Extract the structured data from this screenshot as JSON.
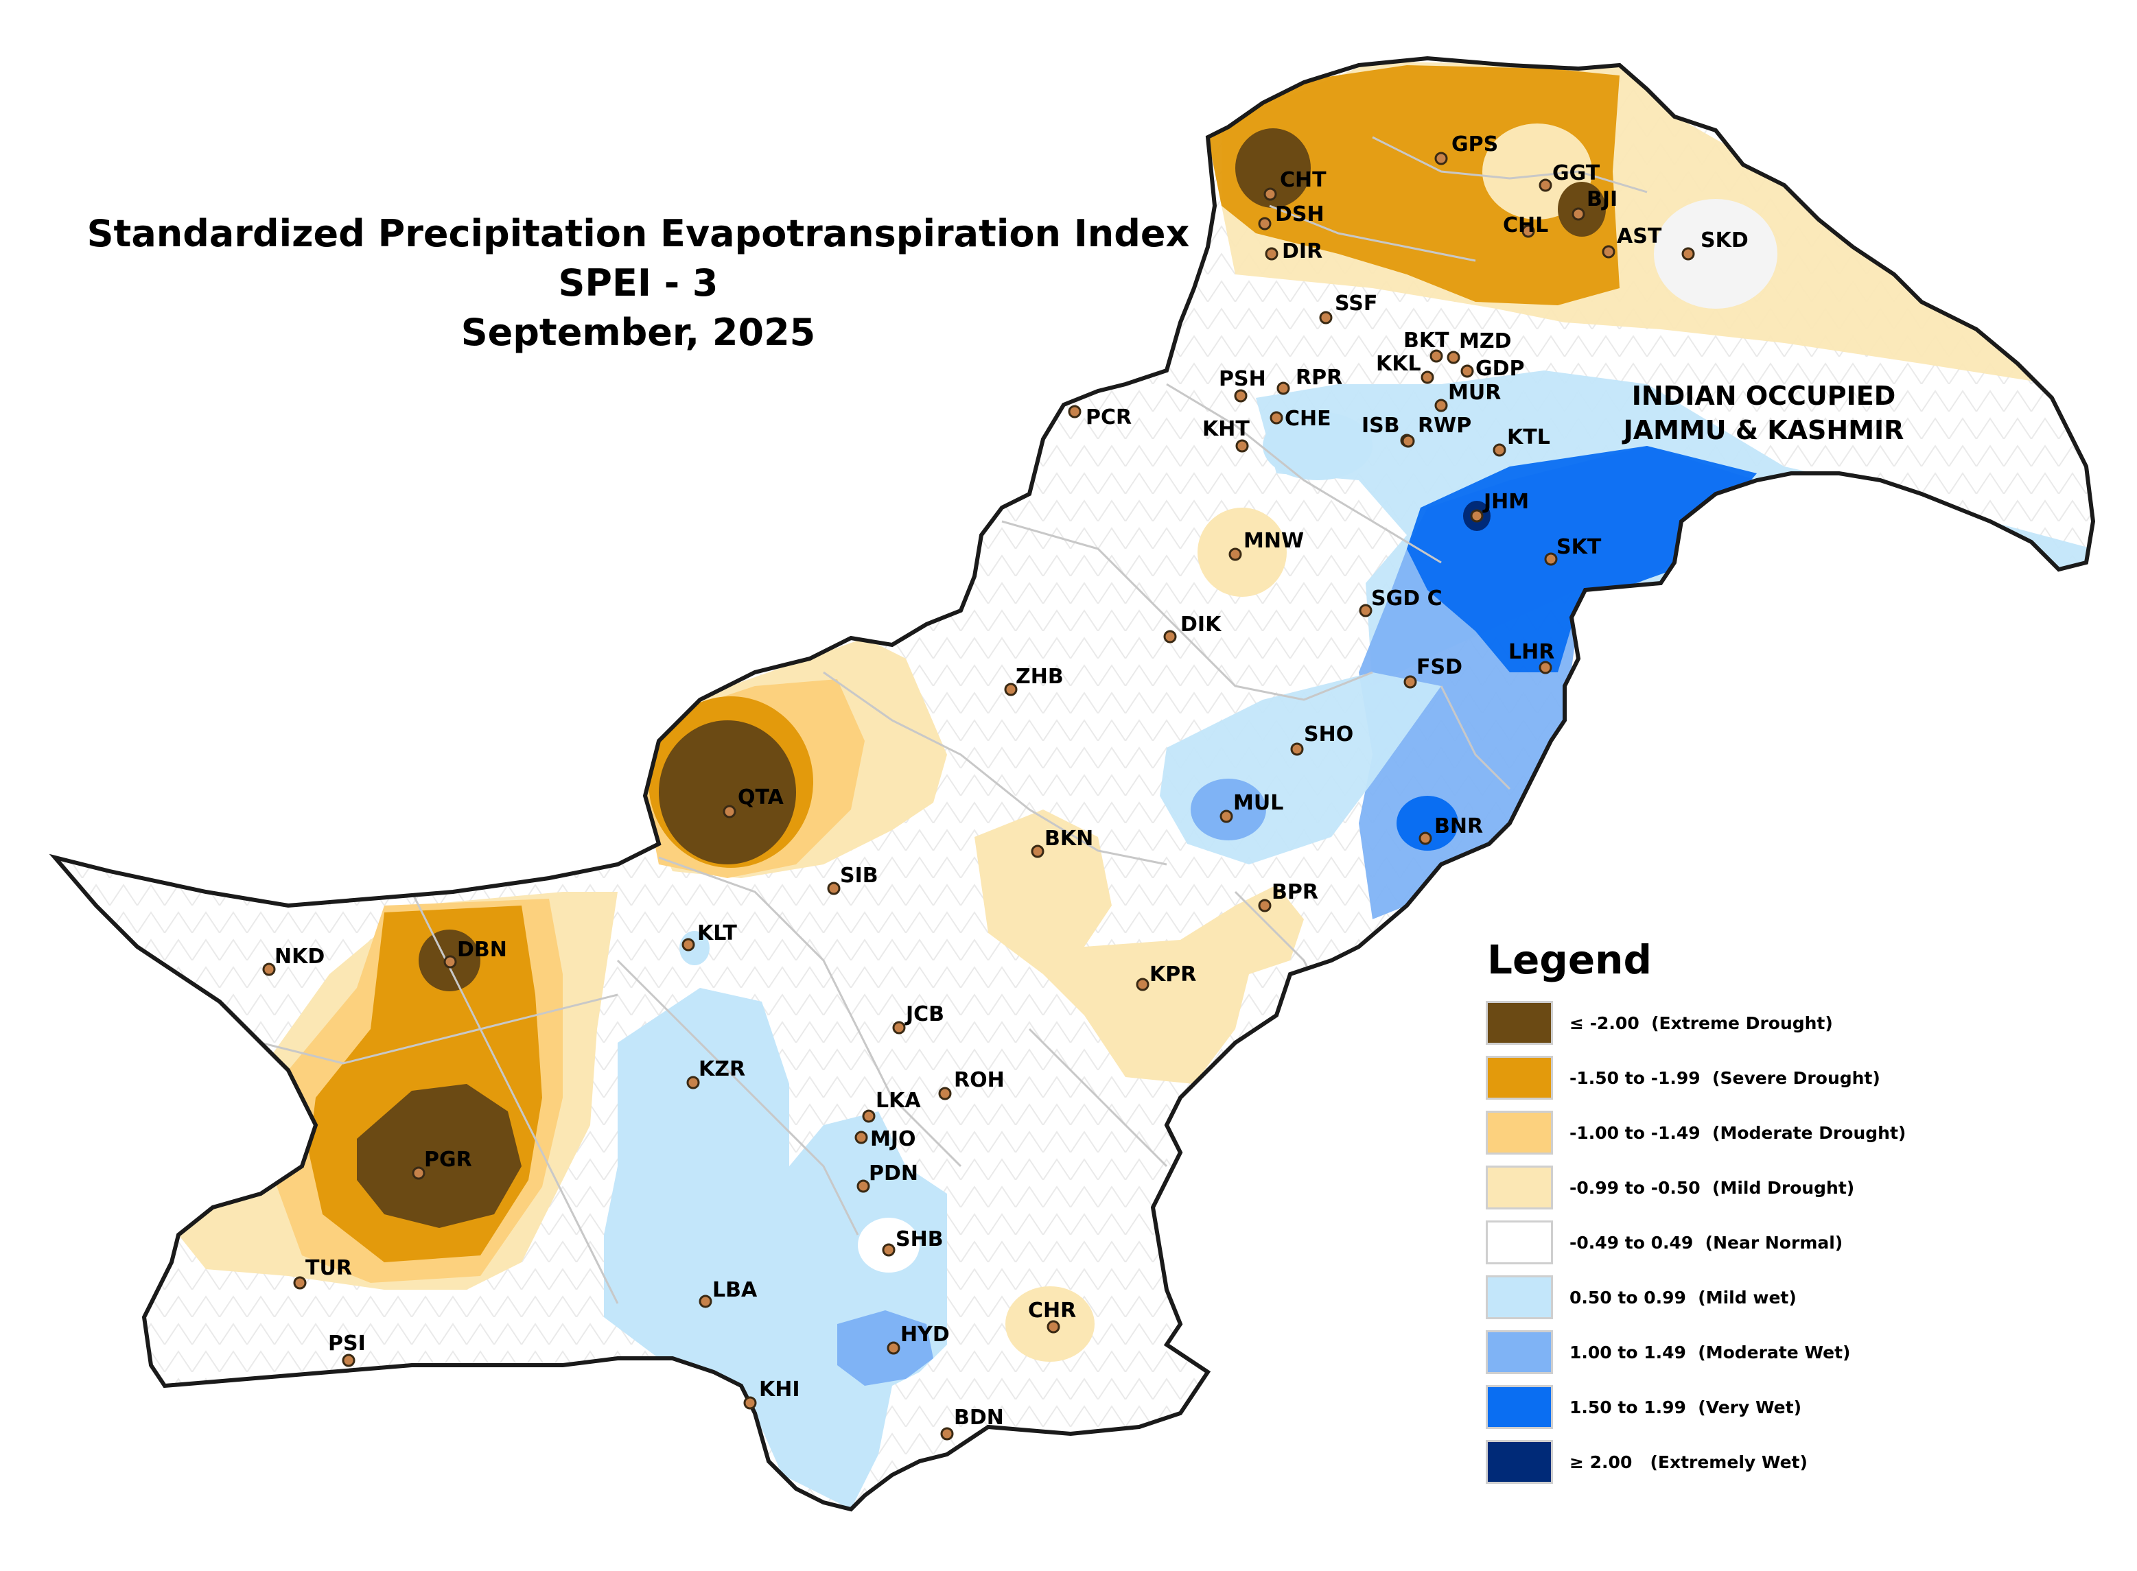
{
  "title": {
    "line1": "Standardized Precipitation Evapotranspiration Index",
    "line2": "SPEI - 3",
    "line3": "September, 2025"
  },
  "region_label": {
    "line1": "INDIAN OCCUPIED",
    "line2": "JAMMU & KASHMIR"
  },
  "legend": {
    "title": "Legend",
    "items": [
      {
        "label": "≤ -2.00  (Extreme Drought)",
        "color": "#6b4a14"
      },
      {
        "label": "-1.50 to -1.99  (Severe Drought)",
        "color": "#e39a0c"
      },
      {
        "label": "-1.00 to -1.49  (Moderate Drought)",
        "color": "#fcd17e"
      },
      {
        "label": "-0.99 to -0.50  (Mild Drought)",
        "color": "#fbe7b4"
      },
      {
        "label": "-0.49 to 0.49  (Near Normal)",
        "color": "#ffffff"
      },
      {
        "label": "0.50 to 0.99  (Mild wet)",
        "color": "#c3e6fa"
      },
      {
        "label": "1.00 to 1.49  (Moderate Wet)",
        "color": "#7fb3f5"
      },
      {
        "label": "1.50 to 1.99  (Very Wet)",
        "color": "#0a6ef2"
      },
      {
        "label": "≥ 2.00   (Extremely Wet)",
        "color": "#002a78"
      }
    ]
  },
  "stations": [
    {
      "code": "CHT"
    },
    {
      "code": "DSH"
    },
    {
      "code": "DIR"
    },
    {
      "code": "GPS"
    },
    {
      "code": "GGT"
    },
    {
      "code": "BJI"
    },
    {
      "code": "CHL"
    },
    {
      "code": "AST"
    },
    {
      "code": "SKD"
    },
    {
      "code": "SSF"
    },
    {
      "code": "BKT"
    },
    {
      "code": "MZD"
    },
    {
      "code": "GDP"
    },
    {
      "code": "KKL"
    },
    {
      "code": "MUR"
    },
    {
      "code": "PSH"
    },
    {
      "code": "RPR"
    },
    {
      "code": "CHE"
    },
    {
      "code": "PCR"
    },
    {
      "code": "KHT"
    },
    {
      "code": "ISB"
    },
    {
      "code": "RWP"
    },
    {
      "code": "KTL"
    },
    {
      "code": "JHM"
    },
    {
      "code": "SKT"
    },
    {
      "code": "MNW"
    },
    {
      "code": "SGD C"
    },
    {
      "code": "DIK"
    },
    {
      "code": "LHR"
    },
    {
      "code": "FSD"
    },
    {
      "code": "ZHB"
    },
    {
      "code": "SHO"
    },
    {
      "code": "QTA"
    },
    {
      "code": "MUL"
    },
    {
      "code": "BKN"
    },
    {
      "code": "BNR"
    },
    {
      "code": "SIB"
    },
    {
      "code": "BPR"
    },
    {
      "code": "KLT"
    },
    {
      "code": "NKD"
    },
    {
      "code": "DBN"
    },
    {
      "code": "KPR"
    },
    {
      "code": "JCB"
    },
    {
      "code": "KZR"
    },
    {
      "code": "ROH"
    },
    {
      "code": "LKA"
    },
    {
      "code": "MJO"
    },
    {
      "code": "PGR"
    },
    {
      "code": "PDN"
    },
    {
      "code": "SHB"
    },
    {
      "code": "TUR"
    },
    {
      "code": "LBA"
    },
    {
      "code": "CHR"
    },
    {
      "code": "PSI"
    },
    {
      "code": "HYD"
    },
    {
      "code": "KHI"
    },
    {
      "code": "BDN"
    }
  ]
}
